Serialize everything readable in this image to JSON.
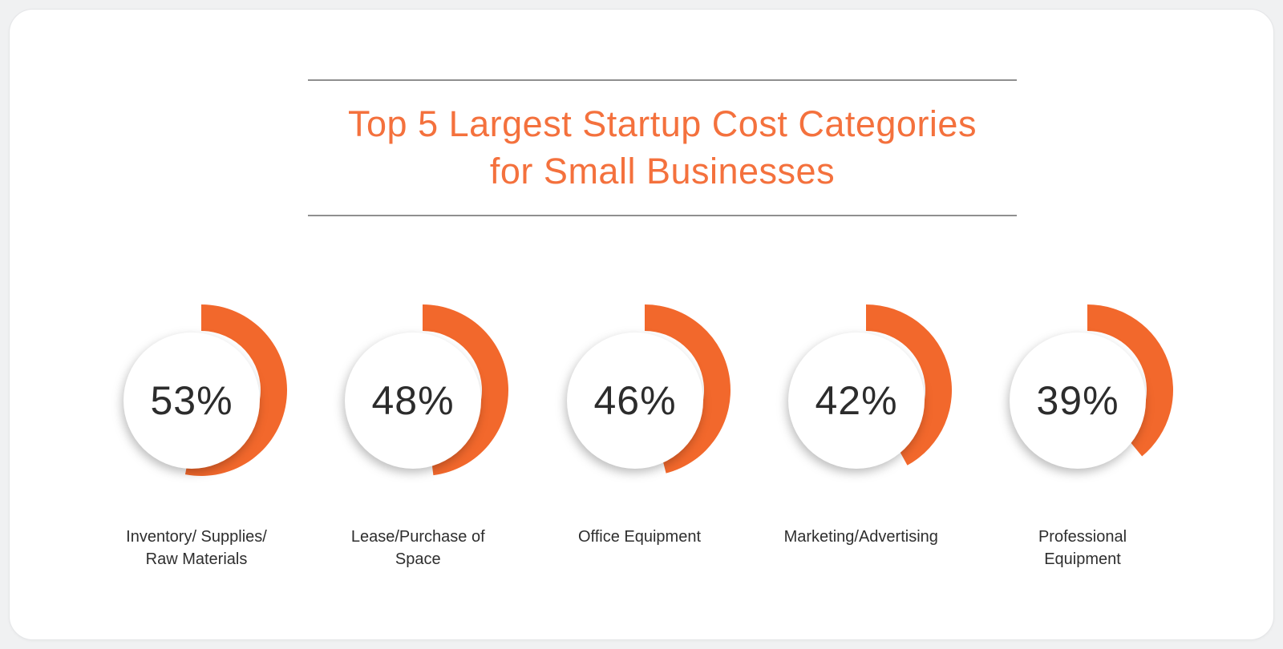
{
  "page": {
    "background": "#f0f1f2",
    "card_background": "#ffffff",
    "card_border": "#e5e6e8"
  },
  "header": {
    "title_line1": "Top 5 Largest Startup Cost Categories",
    "title_line2": "for Small Businesses",
    "title_color": "#f4713d",
    "rule_color": "#8f8f8f"
  },
  "gauges": [
    {
      "percent_text": "53%",
      "value": 53,
      "label_line1": "Inventory/ Supplies/",
      "label_line2": "Raw Materials"
    },
    {
      "percent_text": "48%",
      "value": 48,
      "label_line1": "Lease/Purchase of",
      "label_line2": "Space"
    },
    {
      "percent_text": "46%",
      "value": 46,
      "label_line1": "Office Equipment",
      "label_line2": ""
    },
    {
      "percent_text": "42%",
      "value": 42,
      "label_line1": "Marketing/Advertising",
      "label_line2": ""
    },
    {
      "percent_text": "39%",
      "value": 39,
      "label_line1": "Professional",
      "label_line2": "Equipment"
    }
  ],
  "chart_data": {
    "type": "pie",
    "variant": "donut-gauge-row",
    "title": "Top 5 Largest Startup Cost Categories for Small Businesses",
    "categories": [
      "Inventory/ Supplies/ Raw Materials",
      "Lease/Purchase of Space",
      "Office Equipment",
      "Marketing/Advertising",
      "Professional Equipment"
    ],
    "values": [
      53,
      48,
      46,
      42,
      39
    ],
    "unit": "%",
    "accent_color": "#f2682c",
    "value_text_color": "#2c2c2c",
    "gauge_start_angle_deg": 0,
    "direction": "clockwise",
    "sweep_rule": "value_percent_of_360_degrees",
    "legend": "none"
  }
}
